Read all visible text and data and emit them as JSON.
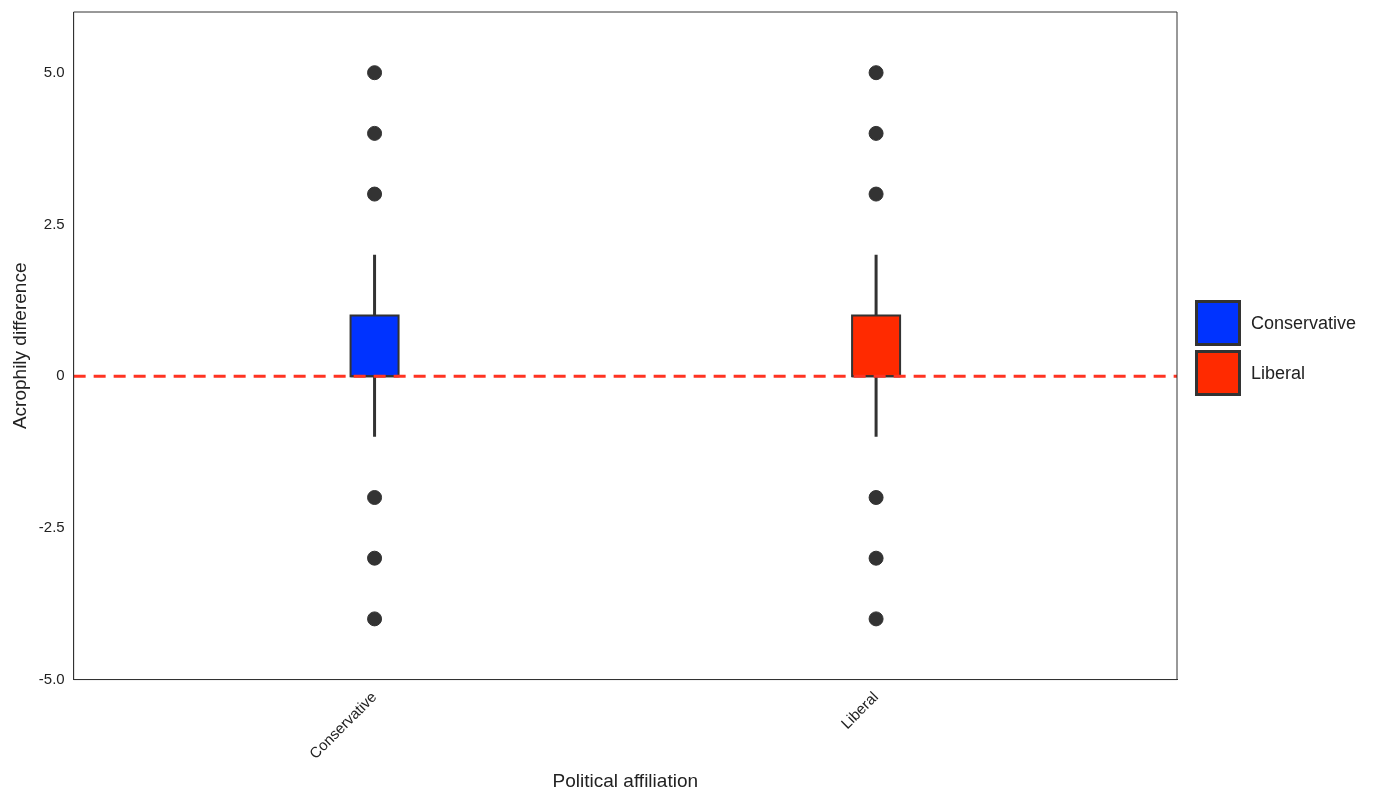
{
  "chart_data": {
    "type": "box",
    "xlabel": "Political affiliation",
    "ylabel": "Acrophily difference",
    "categories": [
      "Conservative",
      "Liberal"
    ],
    "series": [
      {
        "name": "Conservative",
        "color": "#0033ff",
        "boxes": [
          {
            "low": -1.0,
            "q1": 0.0,
            "median": 0.0,
            "q3": 1.0,
            "high": 2.0,
            "outliers": [
              5,
              4,
              3,
              -2,
              -3,
              -4
            ]
          },
          null
        ]
      },
      {
        "name": "Liberal",
        "color": "#ff2a00",
        "boxes": [
          null,
          {
            "low": -1.0,
            "q1": 0.0,
            "median": 0.0,
            "q3": 1.0,
            "high": 2.0,
            "outliers": [
              5,
              4,
              3,
              -2,
              -3,
              -4
            ]
          }
        ]
      }
    ],
    "ylim": [
      -5,
      6
    ],
    "yticks": [
      {
        "value": -5,
        "label": "-5.0"
      },
      {
        "value": -2.5,
        "label": "-2.5"
      },
      0,
      {
        "value": 2.5,
        "label": "2.5"
      },
      {
        "value": 5,
        "label": "5.0"
      }
    ],
    "ref_lines": [
      {
        "axis": "y",
        "value": 0,
        "color": "#ff3322",
        "line_style": "dashed"
      }
    ],
    "grid": false,
    "legend": "right"
  }
}
